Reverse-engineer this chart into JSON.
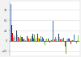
{
  "groups": [
    [
      90,
      38,
      25,
      20,
      8,
      14,
      5,
      10
    ],
    [
      22,
      26,
      16,
      10,
      38,
      10,
      5,
      14
    ],
    [
      10,
      10,
      7,
      4,
      5,
      3,
      3,
      2
    ],
    [
      14,
      12,
      8,
      5,
      10,
      4,
      6,
      3
    ],
    [
      12,
      18,
      5,
      6,
      16,
      3,
      5,
      8
    ],
    [
      52,
      18,
      8,
      5,
      7,
      4,
      12,
      3
    ],
    [
      10,
      6,
      3,
      -3,
      -10,
      4,
      2,
      5
    ],
    [
      6,
      5,
      2,
      -5,
      -18,
      2,
      1,
      3
    ],
    [
      48,
      12,
      7,
      3,
      9,
      5,
      8,
      4
    ],
    [
      32,
      18,
      10,
      4,
      6,
      4,
      6,
      3
    ],
    [
      8,
      10,
      4,
      -14,
      -32,
      3,
      2,
      5
    ],
    [
      5,
      6,
      2,
      -7,
      -22,
      1,
      1,
      2
    ],
    [
      16,
      8,
      4,
      -3,
      -6,
      2,
      3,
      14
    ]
  ],
  "colors": [
    "#4472C4",
    "#1F3864",
    "#FFC000",
    "#FF0000",
    "#70AD47",
    "#9DC3E6",
    "#7F7F7F",
    "#92D050"
  ],
  "background": "#F2F2F2",
  "plot_bg": "#FFFFFF",
  "ylim": [
    -35,
    95
  ],
  "yticks": [
    -25,
    0,
    25,
    50,
    75
  ],
  "gridcolor": "#D9D9D9"
}
